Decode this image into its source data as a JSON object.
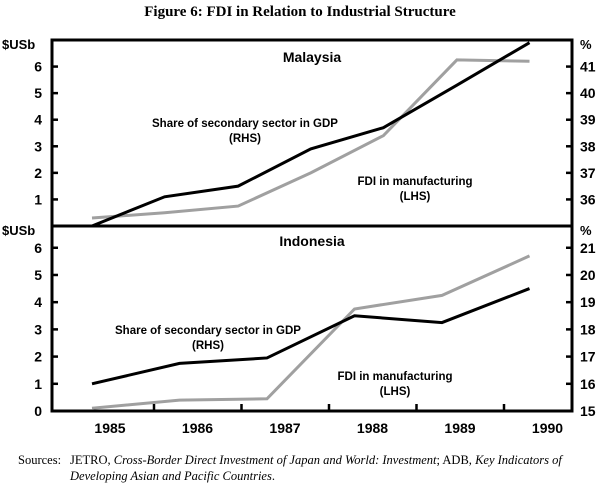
{
  "chart_data": [
    {
      "type": "line",
      "title": "Malaysia",
      "ylabel_left": "$USb",
      "ylabel_right": "%",
      "ylim_left": [
        0,
        7
      ],
      "ylim_right": [
        35,
        42
      ],
      "yticks_left": [
        1,
        2,
        3,
        4,
        5,
        6
      ],
      "yticks_right": [
        36,
        37,
        38,
        39,
        40,
        41
      ],
      "series": [
        {
          "name": "Share of secondary sector in GDP",
          "annotation": "(RHS)",
          "axis": "right",
          "color": "#000000",
          "x": [
            1985,
            1985.83,
            1986.67,
            1987.5,
            1988.33,
            1989.17,
            1990
          ],
          "values": [
            35.0,
            36.1,
            36.5,
            37.9,
            38.7,
            40.3,
            41.9
          ]
        },
        {
          "name": "FDI in manufacturing",
          "annotation": "(LHS)",
          "axis": "left",
          "color": "#a0a0a0",
          "x": [
            1985,
            1985.83,
            1986.67,
            1987.5,
            1988.33,
            1989.17,
            1990
          ],
          "values": [
            0.3,
            0.5,
            0.75,
            2.0,
            3.4,
            6.25,
            6.2
          ]
        }
      ]
    },
    {
      "type": "line",
      "title": "Indonesia",
      "ylabel_left": "$USb",
      "ylabel_right": "%",
      "ylim_left": [
        0,
        6.8
      ],
      "ylim_right": [
        15,
        21.8
      ],
      "yticks_left": [
        0,
        1,
        2,
        3,
        4,
        5,
        6
      ],
      "yticks_right": [
        15,
        16,
        17,
        18,
        19,
        20,
        21
      ],
      "categories": [
        "1985",
        "1986",
        "1987",
        "1988",
        "1989",
        "1990"
      ],
      "series": [
        {
          "name": "Share of secondary sector in GDP",
          "annotation": "(RHS)",
          "axis": "right",
          "color": "#000000",
          "x": [
            1985,
            1986,
            1987,
            1988,
            1989,
            1990
          ],
          "values": [
            16.0,
            16.75,
            16.95,
            18.5,
            18.25,
            19.5
          ]
        },
        {
          "name": "FDI in manufacturing",
          "annotation": "(LHS)",
          "axis": "left",
          "color": "#a0a0a0",
          "x": [
            1985,
            1986,
            1987,
            1988,
            1989,
            1990
          ],
          "values": [
            0.1,
            0.4,
            0.45,
            3.75,
            4.25,
            5.7
          ]
        }
      ]
    }
  ],
  "figure_title": "Figure 6: FDI in Relation to Industrial Structure",
  "sources": {
    "label": "Sources:",
    "t1": "JETRO, ",
    "t2": "Cross-Border Direct Investment of Japan and World: Investment",
    "t3": "; ADB, ",
    "t4": "Key Indicators of Developing Asian and Pacific Countries",
    "t5": "."
  }
}
